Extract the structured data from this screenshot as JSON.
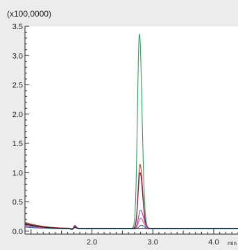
{
  "chart_data": {
    "type": "line",
    "scale_label": "(x100,0000)",
    "x_unit": "min",
    "xlim": [
      0.9,
      4.4
    ],
    "ylim": [
      -0.05,
      3.5
    ],
    "x_ticks": [
      2.0,
      3.0,
      4.0
    ],
    "x_tick_labels": [
      "2.0",
      "3.0",
      "4.0"
    ],
    "y_ticks": [
      0.0,
      0.5,
      1.0,
      1.5,
      2.0,
      2.5,
      3.0,
      3.5
    ],
    "y_tick_labels": [
      "0.0",
      "0.5",
      "1.0",
      "1.5",
      "2.0",
      "2.5",
      "3.0",
      "3.5"
    ],
    "grid": false,
    "series": [
      {
        "color": "#2e9e5e",
        "peak_x": 2.78,
        "peak_y": 3.37,
        "peak_width": 0.045,
        "baseline_start": 0.14,
        "baseline_end": 0.05,
        "early_bump_y": 0.04
      },
      {
        "color": "#c0392b",
        "peak_x": 2.79,
        "peak_y": 1.14,
        "peak_width": 0.045,
        "baseline_start": 0.15,
        "baseline_end": 0.05,
        "early_bump_y": 0.05
      },
      {
        "color": "#7d1f4a",
        "peak_x": 2.79,
        "peak_y": 1.0,
        "peak_width": 0.045,
        "baseline_start": 0.13,
        "baseline_end": 0.04,
        "early_bump_y": 0.04
      },
      {
        "color": "#8e44ad",
        "peak_x": 2.8,
        "peak_y": 0.36,
        "peak_width": 0.05,
        "baseline_start": 0.1,
        "baseline_end": 0.04,
        "early_bump_y": 0.06
      },
      {
        "color": "#d1568f",
        "peak_x": 2.8,
        "peak_y": 0.22,
        "peak_width": 0.05,
        "baseline_start": 0.09,
        "baseline_end": 0.04,
        "early_bump_y": 0.03
      },
      {
        "color": "#2c6fb3",
        "peak_x": 2.81,
        "peak_y": 0.1,
        "peak_width": 0.05,
        "baseline_start": 0.07,
        "baseline_end": 0.04,
        "early_bump_y": 0.03
      },
      {
        "color": "#1a1a1a",
        "peak_x": 2.81,
        "peak_y": 0.05,
        "peak_width": 0.05,
        "baseline_start": 0.12,
        "baseline_end": 0.045,
        "early_bump_y": 0.02
      }
    ]
  }
}
